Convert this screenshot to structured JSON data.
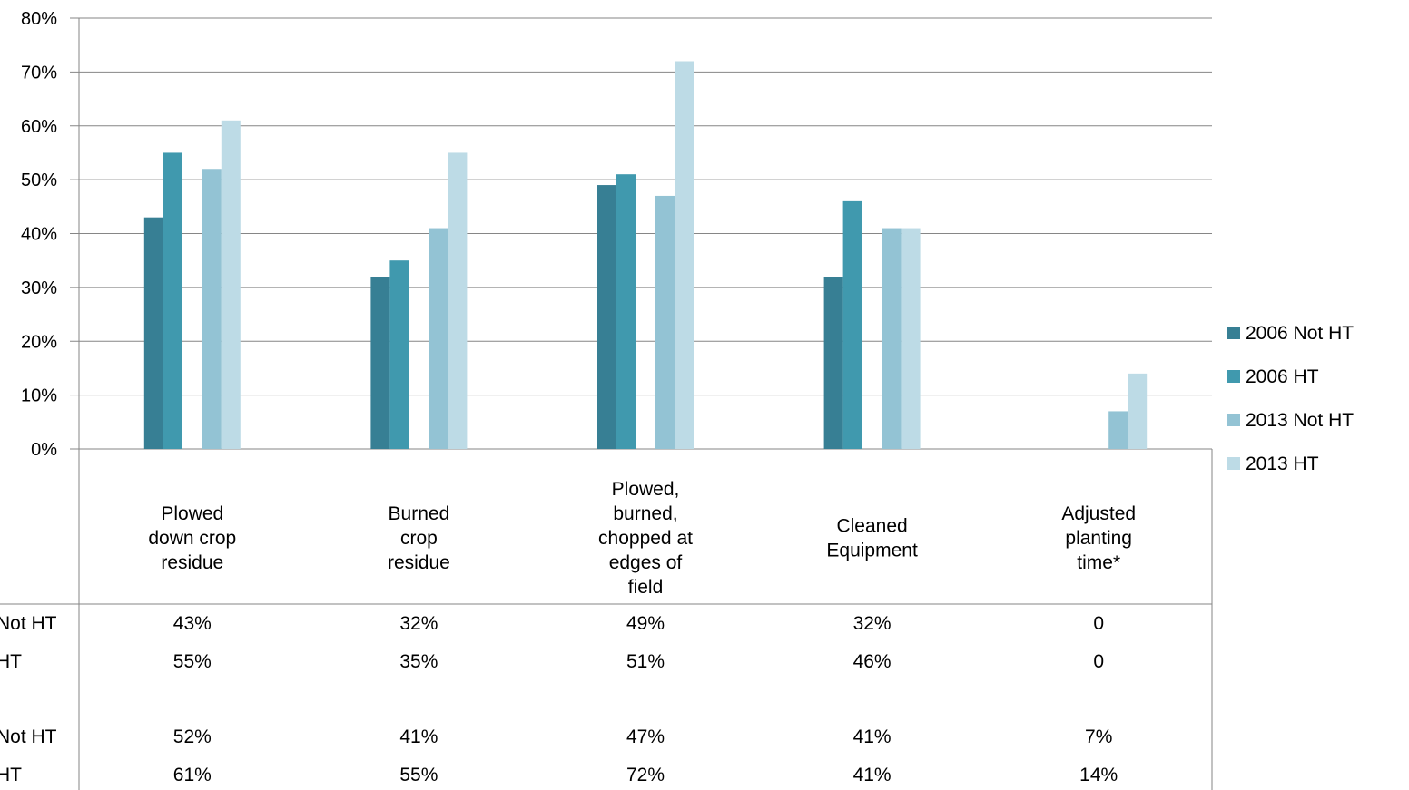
{
  "chart_data": {
    "type": "bar",
    "title": "",
    "xlabel": "",
    "ylabel": "",
    "ylim": [
      0,
      0.8
    ],
    "yticks": [
      "0%",
      "10%",
      "20%",
      "30%",
      "40%",
      "50%",
      "60%",
      "70%",
      "80%"
    ],
    "grid": true,
    "legend_position": "right",
    "categories": [
      [
        "Plowed",
        "down crop",
        "residue"
      ],
      [
        "Burned",
        "crop",
        "residue"
      ],
      [
        "Plowed,",
        "burned,",
        "chopped at",
        "edges of",
        "field"
      ],
      [
        "Cleaned",
        "Equipment"
      ],
      [
        "Adjusted",
        "planting",
        "time*"
      ]
    ],
    "series": [
      {
        "name": "2006 Not HT",
        "color": "#377f94",
        "values": [
          0.43,
          0.32,
          0.49,
          0.32,
          0
        ],
        "labels": [
          "43%",
          "32%",
          "49%",
          "32%",
          "0"
        ]
      },
      {
        "name": "2006 HT",
        "color": "#4099ae",
        "values": [
          0.55,
          0.35,
          0.51,
          0.46,
          0
        ],
        "labels": [
          "55%",
          "35%",
          "51%",
          "46%",
          "0"
        ]
      },
      {
        "name": "2013 Not HT",
        "color": "#93c3d4",
        "values": [
          0.52,
          0.41,
          0.47,
          0.41,
          0.07
        ],
        "labels": [
          "52%",
          "41%",
          "47%",
          "41%",
          "7%"
        ]
      },
      {
        "name": "2013 HT",
        "color": "#bddbe6",
        "values": [
          0.61,
          0.55,
          0.72,
          0.41,
          0.14
        ],
        "labels": [
          "61%",
          "55%",
          "72%",
          "41%",
          "14%"
        ]
      }
    ],
    "table_row_headers": [
      "Not HT",
      "HT",
      "Not HT",
      "HT"
    ]
  }
}
